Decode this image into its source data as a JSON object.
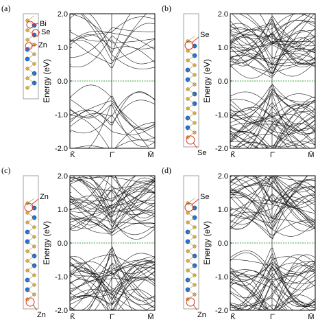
{
  "figure": {
    "panels": [
      {
        "label": "(a)",
        "ylabel": "Energy (eV)",
        "y_ticks": [
          "2.0",
          "1.0",
          "0.0",
          "-1.0",
          "-2.0"
        ],
        "x_ticks": [
          "K̄",
          "Γ̄",
          "M̄"
        ],
        "structure_labels": [
          "Bi",
          "Se",
          "Zn"
        ],
        "slab": "short"
      },
      {
        "label": "(b)",
        "ylabel": "Energy (eV)",
        "y_ticks": [
          "2.0",
          "1.0",
          "0.0",
          "-1.0",
          "-2.0"
        ],
        "x_ticks": [
          "K̄",
          "Γ̄",
          "M̄"
        ],
        "structure_labels": [
          "Se",
          "Se"
        ],
        "slab": "long"
      },
      {
        "label": "(c)",
        "ylabel": "Energy (eV)",
        "y_ticks": [
          "2.0",
          "1.0",
          "0.0",
          "-1.0",
          "-2.0"
        ],
        "x_ticks": [
          "K̄",
          "Γ̄",
          "M̄"
        ],
        "structure_labels": [
          "Zn",
          "Zn"
        ],
        "slab": "long"
      },
      {
        "label": "(d)",
        "ylabel": "Energy (eV)",
        "y_ticks": [
          "2.0",
          "1.0",
          "0.0",
          "-1.0",
          "-2.0"
        ],
        "x_ticks": [
          "K̄",
          "Γ̄",
          "M̄"
        ],
        "structure_labels": [
          "Se",
          "Zn"
        ],
        "slab": "long"
      }
    ],
    "colors": {
      "bands": "#1a1a1a",
      "fermi": "#3aa63a",
      "bi": "#1e6fd6",
      "se": "#e0b03a",
      "zn": "#e26a2c",
      "marker": "#e03020"
    }
  },
  "chart_data": [
    {
      "type": "line",
      "title": "",
      "xlabel": "",
      "ylabel": "Energy (eV)",
      "ylim": [
        -2.0,
        2.0
      ],
      "x_ticks": [
        "K̄",
        "Γ̄",
        "M̄"
      ],
      "fermi_level": 0.0,
      "band_density": "sparse",
      "gap_at_gamma": true
    },
    {
      "type": "line",
      "title": "",
      "xlabel": "",
      "ylabel": "Energy (eV)",
      "ylim": [
        -2.0,
        2.0
      ],
      "x_ticks": [
        "K̄",
        "Γ̄",
        "M̄"
      ],
      "fermi_level": 0.0,
      "band_density": "dense",
      "gap_at_gamma": false
    },
    {
      "type": "line",
      "title": "",
      "xlabel": "",
      "ylabel": "Energy (eV)",
      "ylim": [
        -2.0,
        2.0
      ],
      "x_ticks": [
        "K̄",
        "Γ̄",
        "M̄"
      ],
      "fermi_level": 0.0,
      "band_density": "dense",
      "gap_at_gamma": false
    },
    {
      "type": "line",
      "title": "",
      "xlabel": "",
      "ylabel": "Energy (eV)",
      "ylim": [
        -2.0,
        2.0
      ],
      "x_ticks": [
        "K̄",
        "Γ̄",
        "M̄"
      ],
      "fermi_level": 0.0,
      "band_density": "dense",
      "gap_at_gamma": false
    }
  ]
}
